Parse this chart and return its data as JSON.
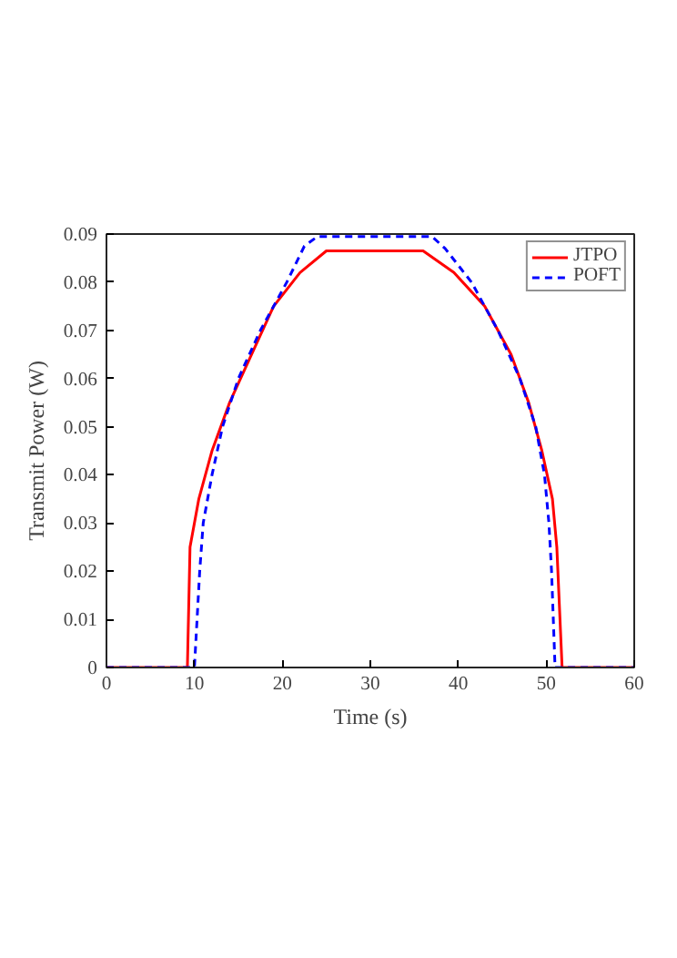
{
  "chart_data": {
    "type": "line",
    "xlabel": "Time (s)",
    "ylabel": "Transmit Power (W)",
    "xlim": [
      0,
      60
    ],
    "ylim": [
      0,
      0.09
    ],
    "xticks": [
      0,
      10,
      20,
      30,
      40,
      50,
      60
    ],
    "yticks": [
      0,
      0.01,
      0.02,
      0.03,
      0.04,
      0.05,
      0.06,
      0.07,
      0.08,
      0.09
    ],
    "grid": false,
    "legend": "top right",
    "marker": "none",
    "series": [
      {
        "name": "JTPO",
        "color": "#ff0000",
        "line_style": "solid",
        "x": [
          0,
          9.2,
          9.5,
          10.5,
          12,
          14,
          16.5,
          19,
          22,
          25,
          36,
          39.5,
          43,
          46,
          48,
          49.5,
          50.7,
          51.2,
          51.8,
          60
        ],
        "values": [
          0,
          0,
          0.025,
          0.035,
          0.045,
          0.055,
          0.065,
          0.075,
          0.082,
          0.0865,
          0.0865,
          0.082,
          0.075,
          0.065,
          0.055,
          0.045,
          0.035,
          0.025,
          0,
          0
        ]
      },
      {
        "name": "POFT",
        "color": "#0000ff",
        "line_style": "dashed",
        "x": [
          0,
          10,
          10.3,
          10.6,
          11,
          12,
          13.2,
          15,
          17.5,
          20.5,
          22.5,
          24,
          37,
          38.5,
          41.5,
          44.5,
          47,
          48.8,
          49.8,
          50.3,
          50.6,
          50.8,
          51,
          60
        ],
        "values": [
          0,
          0,
          0.01,
          0.02,
          0.03,
          0.04,
          0.05,
          0.06,
          0.07,
          0.08,
          0.0875,
          0.0895,
          0.0895,
          0.087,
          0.08,
          0.07,
          0.06,
          0.05,
          0.04,
          0.03,
          0.02,
          0.01,
          0,
          0
        ]
      }
    ]
  }
}
